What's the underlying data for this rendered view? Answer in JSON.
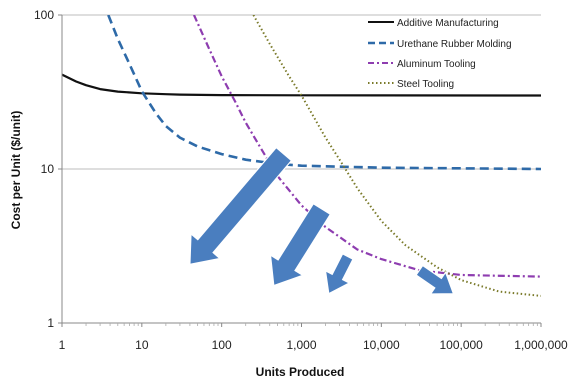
{
  "chart_data": {
    "type": "line",
    "x_scale": "log",
    "y_scale": "log",
    "xlabel": "Units Produced",
    "ylabel": "Cost per Unit ($/unit)",
    "xlim": [
      1,
      1000000
    ],
    "ylim": [
      1,
      100
    ],
    "x_ticks": [
      1,
      10,
      100,
      1000,
      10000,
      100000,
      1000000
    ],
    "x_tick_labels": [
      "1",
      "10",
      "100",
      "1,000",
      "10,000",
      "100,000",
      "1,000,000"
    ],
    "y_ticks": [
      1,
      10,
      100
    ],
    "y_tick_labels": [
      "1",
      "10",
      "100"
    ],
    "grid": "horizontal major",
    "legend_position": "top-right",
    "series": [
      {
        "name": "Additive Manufacturing",
        "style": "solid",
        "color": "#111111",
        "points": [
          [
            1,
            41
          ],
          [
            1.5,
            37
          ],
          [
            2,
            35
          ],
          [
            3,
            33
          ],
          [
            5,
            31.8
          ],
          [
            10,
            31
          ],
          [
            20,
            30.6
          ],
          [
            30,
            30.4
          ],
          [
            100,
            30.2
          ],
          [
            1000,
            30.1
          ],
          [
            1000000,
            30
          ]
        ]
      },
      {
        "name": "Urethane Rubber Molding",
        "style": "dashed",
        "color": "#2e6aa8",
        "points": [
          [
            3.8,
            100
          ],
          [
            5,
            70
          ],
          [
            7,
            48
          ],
          [
            10,
            32
          ],
          [
            15,
            23
          ],
          [
            20,
            19
          ],
          [
            30,
            16
          ],
          [
            50,
            14
          ],
          [
            100,
            12.5
          ],
          [
            200,
            11.5
          ],
          [
            500,
            10.8
          ],
          [
            1000,
            10.5
          ],
          [
            10000,
            10.2
          ],
          [
            1000000,
            10
          ]
        ]
      },
      {
        "name": "Aluminum Tooling",
        "style": "dash-dot",
        "color": "#8e3db0",
        "points": [
          [
            45,
            100
          ],
          [
            70,
            60
          ],
          [
            100,
            40
          ],
          [
            150,
            27
          ],
          [
            200,
            20
          ],
          [
            300,
            14
          ],
          [
            500,
            9
          ],
          [
            1000,
            5.8
          ],
          [
            2000,
            4.2
          ],
          [
            5000,
            3
          ],
          [
            10000,
            2.6
          ],
          [
            30000,
            2.2
          ],
          [
            100000,
            2.05
          ],
          [
            1000000,
            2
          ]
        ]
      },
      {
        "name": "Steel Tooling",
        "style": "dotted",
        "color": "#7a7a2a",
        "points": [
          [
            250,
            100
          ],
          [
            400,
            65
          ],
          [
            700,
            40
          ],
          [
            1000,
            30
          ],
          [
            2000,
            16
          ],
          [
            3000,
            11.5
          ],
          [
            5000,
            7.5
          ],
          [
            10000,
            4.6
          ],
          [
            20000,
            3.2
          ],
          [
            50000,
            2.3
          ],
          [
            100000,
            1.9
          ],
          [
            300000,
            1.6
          ],
          [
            1000000,
            1.5
          ]
        ]
      }
    ],
    "arrows": [
      {
        "from": [
          600,
          12.5
        ],
        "to": [
          40,
          2.4
        ]
      },
      {
        "from": [
          1800,
          5.5
        ],
        "to": [
          450,
          1.75
        ]
      },
      {
        "from": [
          3800,
          2.7
        ],
        "to": [
          2200,
          1.55
        ]
      },
      {
        "from": [
          30000,
          2.2
        ],
        "to": [
          80000,
          1.55
        ]
      }
    ],
    "arrow_color": "#4a7ebf"
  }
}
